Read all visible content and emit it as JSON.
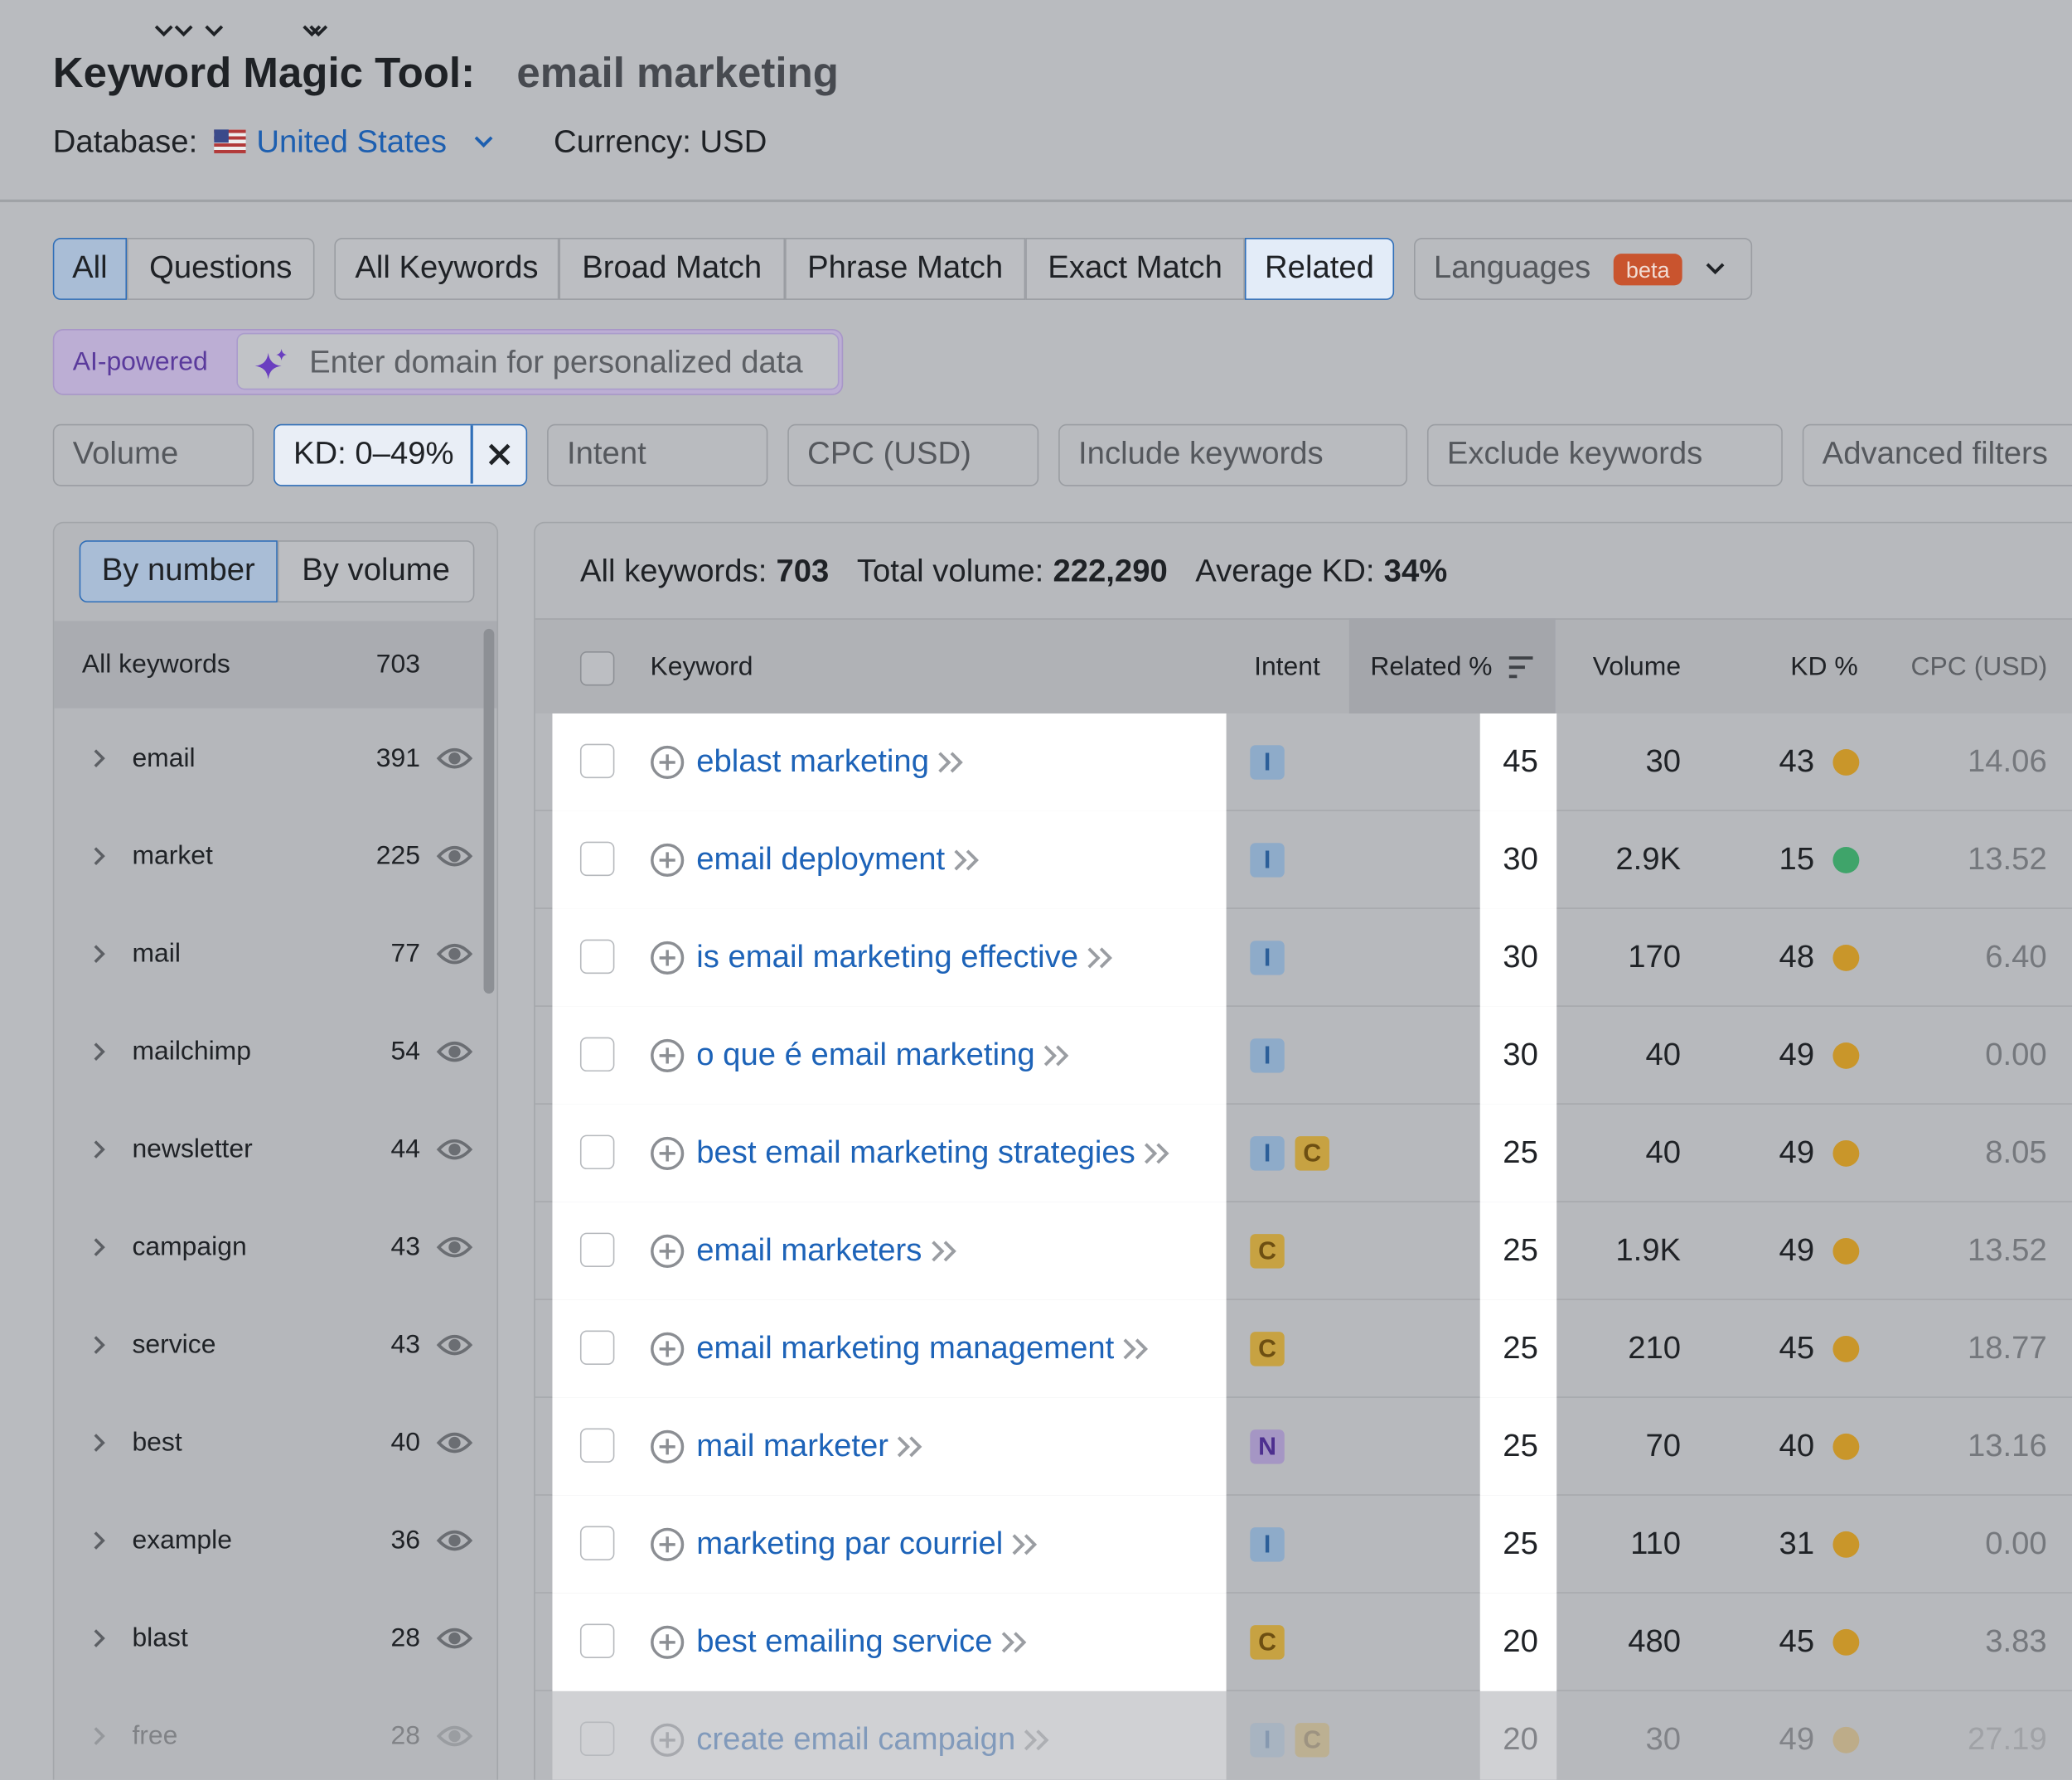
{
  "header": {
    "title": "Keyword Magic Tool:",
    "query": "email marketing",
    "database_label": "Database:",
    "database": "United States",
    "currency": "Currency: USD"
  },
  "type_tabs": [
    "All",
    "Questions"
  ],
  "match_tabs": [
    "All Keywords",
    "Broad Match",
    "Phrase Match",
    "Exact Match",
    "Related"
  ],
  "languages": {
    "label": "Languages",
    "badge": "beta"
  },
  "ai": {
    "label": "AI-powered",
    "placeholder": "Enter domain for personalized data"
  },
  "filters": [
    "Volume",
    "KD: 0–49%",
    "Intent",
    "CPC (USD)",
    "Include keywords",
    "Exclude keywords",
    "Advanced filters"
  ],
  "sidebar": {
    "toggle": [
      "By number",
      "By volume"
    ],
    "all_label": "All keywords",
    "all_count": 703,
    "groups": [
      {
        "name": "email",
        "count": 391
      },
      {
        "name": "market",
        "count": 225
      },
      {
        "name": "mail",
        "count": 77
      },
      {
        "name": "mailchimp",
        "count": 54
      },
      {
        "name": "newsletter",
        "count": 44
      },
      {
        "name": "campaign",
        "count": 43
      },
      {
        "name": "service",
        "count": 43
      },
      {
        "name": "best",
        "count": 40
      },
      {
        "name": "example",
        "count": 36
      },
      {
        "name": "blast",
        "count": 28
      },
      {
        "name": "free",
        "count": 28
      }
    ]
  },
  "summary": [
    {
      "label": "All keywords:",
      "value": "703"
    },
    {
      "label": "Total volume:",
      "value": "222,290"
    },
    {
      "label": "Average KD:",
      "value": "34%"
    }
  ],
  "table": {
    "columns": [
      "Keyword",
      "Intent",
      "Related %",
      "Volume",
      "KD %",
      "CPC (USD)"
    ],
    "rows": [
      {
        "keyword": "eblast marketing",
        "intent": [
          "I"
        ],
        "related": 45,
        "volume": "30",
        "kd": 43,
        "kd_color": "#c9962a",
        "cpc": "14.06"
      },
      {
        "keyword": "email deployment",
        "intent": [
          "I"
        ],
        "related": 30,
        "volume": "2.9K",
        "kd": 15,
        "kd_color": "#3fa46a",
        "cpc": "13.52"
      },
      {
        "keyword": "is email marketing effective",
        "intent": [
          "I"
        ],
        "related": 30,
        "volume": "170",
        "kd": 48,
        "kd_color": "#c9962a",
        "cpc": "6.40"
      },
      {
        "keyword": "o que é email marketing",
        "intent": [
          "I"
        ],
        "related": 30,
        "volume": "40",
        "kd": 49,
        "kd_color": "#c9962a",
        "cpc": "0.00"
      },
      {
        "keyword": "best email marketing strategies",
        "intent": [
          "I",
          "C"
        ],
        "related": 25,
        "volume": "40",
        "kd": 49,
        "kd_color": "#c9962a",
        "cpc": "8.05"
      },
      {
        "keyword": "email marketers",
        "intent": [
          "C"
        ],
        "related": 25,
        "volume": "1.9K",
        "kd": 49,
        "kd_color": "#c9962a",
        "cpc": "13.52"
      },
      {
        "keyword": "email marketing management",
        "intent": [
          "C"
        ],
        "related": 25,
        "volume": "210",
        "kd": 45,
        "kd_color": "#c9962a",
        "cpc": "18.77"
      },
      {
        "keyword": "mail marketer",
        "intent": [
          "N"
        ],
        "related": 25,
        "volume": "70",
        "kd": 40,
        "kd_color": "#c9962a",
        "cpc": "13.16"
      },
      {
        "keyword": "marketing par courriel",
        "intent": [
          "I"
        ],
        "related": 25,
        "volume": "110",
        "kd": 31,
        "kd_color": "#c9962a",
        "cpc": "0.00"
      },
      {
        "keyword": "best emailing service",
        "intent": [
          "C"
        ],
        "related": 20,
        "volume": "480",
        "kd": 45,
        "kd_color": "#c9962a",
        "cpc": "3.83"
      },
      {
        "keyword": "create email campaign",
        "intent": [
          "I",
          "C"
        ],
        "related": 20,
        "volume": "30",
        "kd": 49,
        "kd_color": "#c9962a",
        "cpc": "27.19"
      }
    ]
  }
}
